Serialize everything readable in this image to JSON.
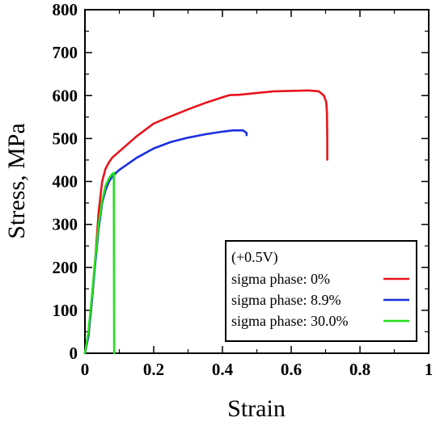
{
  "chart_data": {
    "type": "line",
    "title": "",
    "xlabel": "Strain",
    "ylabel": "Stress, MPa",
    "xlim": [
      0,
      1
    ],
    "ylim": [
      0,
      800
    ],
    "x_ticks": [
      0,
      0.2,
      0.4,
      0.6,
      0.8,
      1
    ],
    "x_tick_labels": [
      "0",
      "0.2",
      "0.4",
      "0.6",
      "0.8",
      "1"
    ],
    "y_ticks": [
      0,
      100,
      200,
      300,
      400,
      500,
      600,
      700,
      800
    ],
    "y_tick_labels": [
      "0",
      "100",
      "200",
      "300",
      "400",
      "500",
      "600",
      "700",
      "800"
    ],
    "grid": false,
    "legend_position": "bottom-right",
    "legend_title": "(+0.5V)",
    "series": [
      {
        "name": "sigma phase: 0%",
        "color": "#e8141b",
        "points": [
          [
            0,
            0
          ],
          [
            0.01,
            40
          ],
          [
            0.02,
            120
          ],
          [
            0.03,
            220
          ],
          [
            0.04,
            330
          ],
          [
            0.05,
            400
          ],
          [
            0.06,
            430
          ],
          [
            0.07,
            445
          ],
          [
            0.08,
            456
          ],
          [
            0.1,
            470
          ],
          [
            0.15,
            505
          ],
          [
            0.2,
            535
          ],
          [
            0.25,
            552
          ],
          [
            0.3,
            568
          ],
          [
            0.35,
            583
          ],
          [
            0.4,
            596
          ],
          [
            0.42,
            601
          ],
          [
            0.45,
            602
          ],
          [
            0.5,
            606
          ],
          [
            0.55,
            610
          ],
          [
            0.6,
            611
          ],
          [
            0.65,
            612
          ],
          [
            0.68,
            610
          ],
          [
            0.695,
            600
          ],
          [
            0.702,
            585
          ],
          [
            0.704,
            560
          ],
          [
            0.705,
            500
          ],
          [
            0.705,
            451
          ]
        ]
      },
      {
        "name": "sigma phase: 8.9%",
        "color": "#1a2fe0",
        "points": [
          [
            0,
            0
          ],
          [
            0.01,
            40
          ],
          [
            0.02,
            120
          ],
          [
            0.03,
            210
          ],
          [
            0.04,
            290
          ],
          [
            0.05,
            350
          ],
          [
            0.06,
            380
          ],
          [
            0.07,
            400
          ],
          [
            0.08,
            412
          ],
          [
            0.09,
            420
          ],
          [
            0.1,
            427
          ],
          [
            0.15,
            455
          ],
          [
            0.2,
            477
          ],
          [
            0.25,
            492
          ],
          [
            0.3,
            502
          ],
          [
            0.35,
            510
          ],
          [
            0.4,
            516
          ],
          [
            0.43,
            519
          ],
          [
            0.46,
            519
          ],
          [
            0.47,
            513
          ],
          [
            0.47,
            508
          ]
        ]
      },
      {
        "name": "sigma phase: 30.0%",
        "color": "#22e01d",
        "points": [
          [
            0,
            0
          ],
          [
            0.01,
            50
          ],
          [
            0.02,
            130
          ],
          [
            0.03,
            220
          ],
          [
            0.04,
            300
          ],
          [
            0.05,
            355
          ],
          [
            0.06,
            390
          ],
          [
            0.07,
            408
          ],
          [
            0.08,
            418
          ],
          [
            0.084,
            420
          ],
          [
            0.085,
            0
          ]
        ]
      }
    ]
  }
}
